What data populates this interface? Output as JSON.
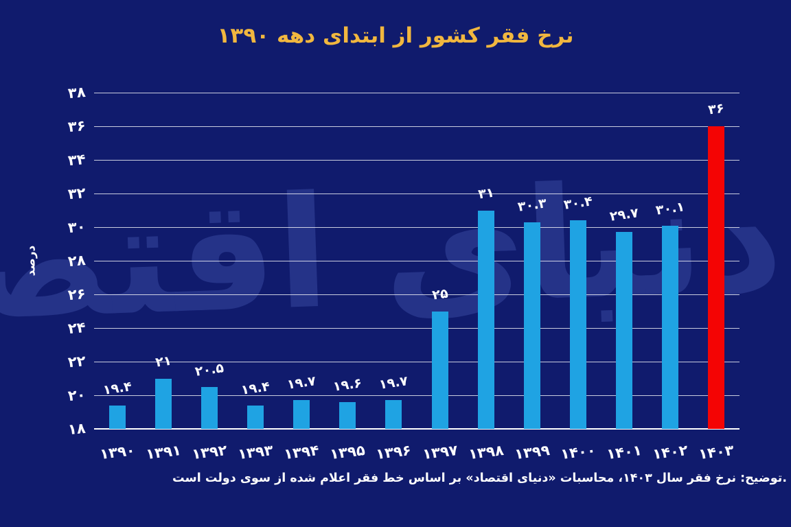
{
  "page": {
    "background_color": "#101B6D",
    "title_color": "#F1B73F",
    "text_color": "#FFFFFF",
    "gridline_color": "rgba(255,255,255,0.78)",
    "watermark_color": "#33439B"
  },
  "chart_data": {
    "type": "bar",
    "title": "نرخ فقر کشور از ابتدای دهه ۱۳۹۰",
    "ylabel": "درصد",
    "ymin": 18,
    "ymax": 38,
    "grid": true,
    "legend_position": "none",
    "categories": [
      "۱۳۹۰",
      "۱۳۹۱",
      "۱۳۹۲",
      "۱۳۹۳",
      "۱۳۹۴",
      "۱۳۹۵",
      "۱۳۹۶",
      "۱۳۹۷",
      "۱۳۹۸",
      "۱۳۹۹",
      "۱۴۰۰",
      "۱۴۰۱",
      "۱۴۰۲",
      "۱۴۰۳"
    ],
    "values": [
      19.4,
      21,
      20.5,
      19.4,
      19.7,
      19.6,
      19.7,
      25,
      31,
      30.3,
      30.4,
      29.7,
      30.1,
      36
    ],
    "value_labels": [
      "۱۹.۴",
      "۲۱",
      "۲۰.۵",
      "۱۹.۴",
      "۱۹.۷",
      "۱۹.۶",
      "۱۹.۷",
      "۲۵",
      "۳۱",
      "۳۰.۳",
      "۳۰.۴",
      "۲۹.۷",
      "۳۰.۱",
      "۳۶"
    ],
    "yticks": [
      {
        "value": 18,
        "label": "۱۸"
      },
      {
        "value": 20,
        "label": "۲۰"
      },
      {
        "value": 22,
        "label": "۲۲"
      },
      {
        "value": 24,
        "label": "۲۴"
      },
      {
        "value": 26,
        "label": "۲۶"
      },
      {
        "value": 28,
        "label": "۲۸"
      },
      {
        "value": 30,
        "label": "۳۰"
      },
      {
        "value": 32,
        "label": "۳۲"
      },
      {
        "value": 34,
        "label": "۳۴"
      },
      {
        "value": 36,
        "label": "۳۶"
      },
      {
        "value": 38,
        "label": "۳۸"
      }
    ],
    "bar_color": "#1FA3E3",
    "highlight_color": "#F40404",
    "highlight_index": 13,
    "note": ".توضیح: نرخ فقر سال ۱۴۰۳، محاسبات «دنیای اقتصاد» بر اساس خط فقر اعلام شده از سوی دولت است",
    "watermark": "دنیای اقتصاد"
  }
}
